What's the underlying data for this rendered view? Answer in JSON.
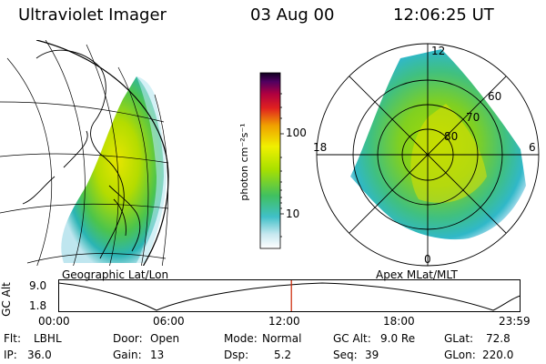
{
  "header": {
    "instrument": "Ultraviolet Imager",
    "date": "03 Aug 00",
    "time": "12:06:25 UT"
  },
  "geo_panel": {
    "label": "Geographic Lat/Lon"
  },
  "polar_panel": {
    "label": "Apex MLat/MLT",
    "mlt_labels": {
      "top": "12",
      "bottom": "0",
      "left": "18",
      "right": "6"
    },
    "lat_labels": [
      "60",
      "70",
      "80"
    ]
  },
  "colorbar": {
    "unit_label": "photon cm⁻²s⁻¹",
    "ticks": [
      "100",
      "10"
    ]
  },
  "orbit_plot": {
    "ylabel": "GC Alt",
    "y_ticks": [
      "9.0",
      "1.8"
    ],
    "x_ticks": [
      "00:00",
      "06:00",
      "12:00",
      "18:00",
      "23:59"
    ],
    "current_time_fraction": 0.5044
  },
  "info_rows": [
    [
      {
        "label": "Flt:",
        "value": "LBHL"
      },
      {
        "label": "Door:",
        "value": "Open"
      },
      {
        "label": "Mode:",
        "value": "Normal"
      },
      {
        "label": "GC Alt:",
        "value": "9.0 Re"
      },
      {
        "label": "GLat:",
        "value": "72.8"
      }
    ],
    [
      {
        "label": "IP:",
        "value": "36.0"
      },
      {
        "label": "Gain:",
        "value": "13"
      },
      {
        "label": "Dsp:",
        "value": "5.2"
      },
      {
        "label": "Seq:",
        "value": "39"
      },
      {
        "label": "GLon:",
        "value": "220.0"
      }
    ]
  ],
  "colors": {
    "marker": "#cc2200",
    "grid": "#000000"
  }
}
